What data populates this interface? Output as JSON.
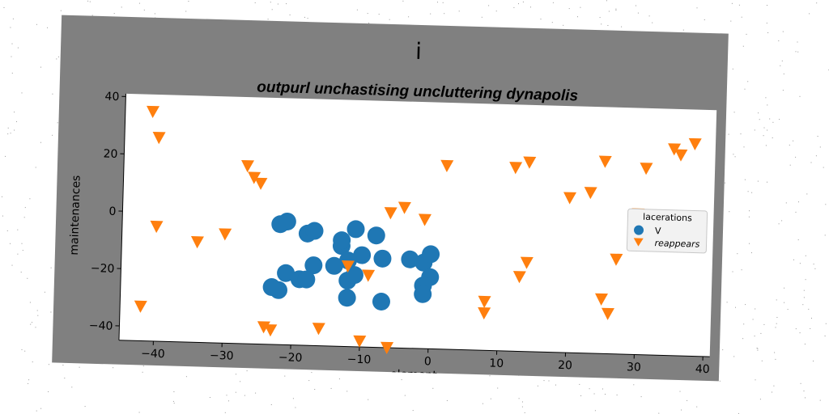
{
  "chart_data": {
    "type": "scatter",
    "title": "i",
    "subtitle": "outpurl unchastising uncluttering dynapolis",
    "xlabel": "element",
    "ylabel": "maintenances",
    "xlim": [
      -45,
      41
    ],
    "ylim": [
      -45,
      41
    ],
    "xticks": [
      "−40",
      "−30",
      "−20",
      "−10",
      "0",
      "10",
      "20",
      "30",
      "40"
    ],
    "yticks": [
      "−40",
      "−20",
      "0",
      "20",
      "40"
    ],
    "grid": false,
    "legend": {
      "title": "lacerations",
      "placement": "right",
      "entries": [
        "V",
        "reappears"
      ]
    },
    "series": [
      {
        "name": "V",
        "marker": "circle",
        "color": "#1f77b4",
        "points": [
          [
            -22,
            -3
          ],
          [
            -21,
            -2
          ],
          [
            -18,
            -6
          ],
          [
            -17,
            -5
          ],
          [
            -13,
            -10
          ],
          [
            -13,
            -8
          ],
          [
            -11,
            -4
          ],
          [
            -8,
            -6
          ],
          [
            -10,
            -13
          ],
          [
            -7,
            -14
          ],
          [
            -12,
            -15
          ],
          [
            -14,
            -17
          ],
          [
            -17,
            -17
          ],
          [
            -19,
            -22
          ],
          [
            -21,
            -20
          ],
          [
            -22,
            -26
          ],
          [
            -23,
            -25
          ],
          [
            -18,
            -22
          ],
          [
            -12,
            -22
          ],
          [
            -11,
            -20
          ],
          [
            -12,
            -28
          ],
          [
            -7,
            -29
          ],
          [
            -3,
            -14
          ],
          [
            -1,
            -15
          ],
          [
            0,
            -12
          ],
          [
            0,
            -20
          ],
          [
            -1,
            -23
          ],
          [
            -1,
            -26
          ]
        ]
      },
      {
        "name": "reappears",
        "marker": "triangle-down",
        "color": "#ff7f0e",
        "points": [
          [
            -41,
            35
          ],
          [
            -40,
            26
          ],
          [
            -40,
            -5
          ],
          [
            -42,
            -33
          ],
          [
            -34,
            -10
          ],
          [
            -30,
            -7
          ],
          [
            -27,
            17
          ],
          [
            -26,
            13
          ],
          [
            -25,
            11
          ],
          [
            -24,
            -39
          ],
          [
            -23,
            -40
          ],
          [
            -16,
            -39
          ],
          [
            -12,
            -17
          ],
          [
            -9,
            -20
          ],
          [
            -10,
            -43
          ],
          [
            -6,
            -45
          ],
          [
            -6,
            2
          ],
          [
            -4,
            4
          ],
          [
            -1,
            0
          ],
          [
            2,
            19
          ],
          [
            8,
            -28
          ],
          [
            8,
            -32
          ],
          [
            12,
            19
          ],
          [
            14,
            21
          ],
          [
            14,
            -14
          ],
          [
            13,
            -19
          ],
          [
            20,
            9
          ],
          [
            23,
            11
          ],
          [
            25,
            22
          ],
          [
            25,
            -26
          ],
          [
            26,
            -31
          ],
          [
            27,
            -12
          ],
          [
            30,
            4
          ],
          [
            31,
            20
          ],
          [
            32,
            2
          ],
          [
            35,
            27
          ],
          [
            36,
            25
          ],
          [
            38,
            29
          ]
        ]
      }
    ]
  }
}
